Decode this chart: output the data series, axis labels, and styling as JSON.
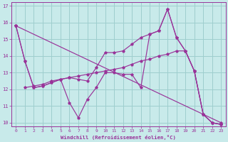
{
  "bg_color": "#c8eaea",
  "line_color": "#993399",
  "grid_color": "#9ecece",
  "xlabel": "Windchill (Refroidissement éolien,°C)",
  "xlabel_color": "#993399",
  "tick_color": "#993399",
  "xlim": [
    -0.5,
    23.5
  ],
  "ylim": [
    9.8,
    17.2
  ],
  "yticks": [
    10,
    11,
    12,
    13,
    14,
    15,
    16,
    17
  ],
  "xticks": [
    0,
    1,
    2,
    3,
    4,
    5,
    6,
    7,
    8,
    9,
    10,
    11,
    12,
    13,
    14,
    15,
    16,
    17,
    18,
    19,
    20,
    21,
    22,
    23
  ],
  "series": [
    {
      "x": [
        0,
        1,
        2,
        3,
        4,
        5,
        6,
        7,
        8,
        9,
        10,
        11,
        12,
        13,
        14,
        15,
        16,
        17,
        18,
        19,
        20,
        21,
        22,
        23
      ],
      "y": [
        15.8,
        13.7,
        12.1,
        12.2,
        12.4,
        12.6,
        12.7,
        12.6,
        12.5,
        13.3,
        14.2,
        14.2,
        14.3,
        14.7,
        15.1,
        15.3,
        15.5,
        16.8,
        15.1,
        14.3,
        13.1,
        10.5,
        10.0,
        9.9
      ]
    },
    {
      "x": [
        0,
        1,
        2,
        3,
        4,
        5,
        6,
        7,
        8,
        9,
        10,
        11,
        12,
        13,
        14,
        15,
        16,
        17,
        18,
        19,
        20,
        21,
        22,
        23
      ],
      "y": [
        15.8,
        13.7,
        12.1,
        12.2,
        12.4,
        12.6,
        11.2,
        10.3,
        11.4,
        12.1,
        13.0,
        13.0,
        12.9,
        12.9,
        12.1,
        15.3,
        15.5,
        16.8,
        15.1,
        14.3,
        13.1,
        10.5,
        10.0,
        9.9
      ]
    },
    {
      "x": [
        0,
        23
      ],
      "y": [
        15.8,
        10.0
      ]
    },
    {
      "x": [
        1,
        2,
        3,
        4,
        5,
        6,
        7,
        8,
        9,
        10,
        11,
        12,
        13,
        14,
        15,
        16,
        17,
        18,
        19,
        20,
        21,
        22,
        23
      ],
      "y": [
        12.1,
        12.2,
        12.3,
        12.5,
        12.6,
        12.7,
        12.8,
        12.9,
        13.0,
        13.1,
        13.2,
        13.3,
        13.5,
        13.7,
        13.8,
        14.0,
        14.1,
        14.3,
        14.3,
        13.1,
        10.5,
        10.0,
        9.9
      ]
    }
  ]
}
